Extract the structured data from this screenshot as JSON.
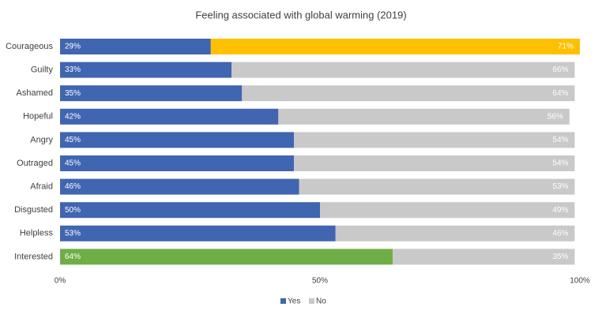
{
  "chart_data": {
    "type": "stacked_bar_horizontal",
    "title": "Feeling associated with global warming (2019)",
    "categories": [
      "Courageous",
      "Guilty",
      "Ashamed",
      "Hopeful",
      "Angry",
      "Outraged",
      "Afraid",
      "Disgusted",
      "Helpless",
      "Interested"
    ],
    "series": [
      {
        "name": "Yes",
        "color": "#4065b1",
        "colors": [
          "#4065b1",
          "#4065b1",
          "#4065b1",
          "#4065b1",
          "#4065b1",
          "#4065b1",
          "#4065b1",
          "#4065b1",
          "#4065b1",
          "#70ad47"
        ],
        "values": [
          29,
          33,
          35,
          42,
          45,
          45,
          46,
          50,
          53,
          64
        ],
        "value_labels": [
          "29%",
          "33%",
          "35%",
          "42%",
          "45%",
          "45%",
          "46%",
          "50%",
          "53%",
          "64%"
        ]
      },
      {
        "name": "No",
        "color": "#c9c9c9",
        "colors": [
          "#ffc000",
          "#c9c9c9",
          "#c9c9c9",
          "#c9c9c9",
          "#c9c9c9",
          "#c9c9c9",
          "#c9c9c9",
          "#c9c9c9",
          "#c9c9c9",
          "#c9c9c9"
        ],
        "values": [
          71,
          66,
          64,
          56,
          54,
          54,
          53,
          49,
          46,
          35
        ],
        "value_labels": [
          "71%",
          "66%",
          "64%",
          "56%",
          "54%",
          "54%",
          "53%",
          "49%",
          "46%",
          "35%"
        ]
      }
    ],
    "xlim": [
      0,
      100
    ],
    "xticks": [
      {
        "value": 0,
        "label": "0%"
      },
      {
        "value": 50,
        "label": "50%"
      },
      {
        "value": 100,
        "label": "100%"
      }
    ],
    "legend": "bottom"
  }
}
